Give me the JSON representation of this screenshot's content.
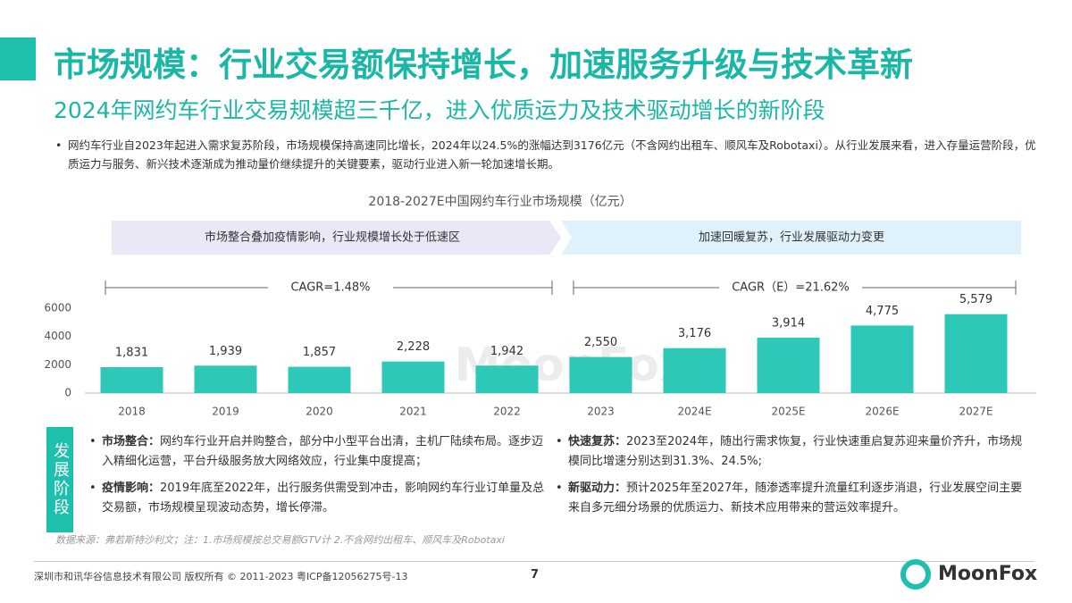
{
  "header": {
    "title": "市场规模：行业交易额保持增长，加速服务升级与技术革新",
    "subtitle": "2024年网约车行业交易规模超三千亿，进入优质运力及技术驱动增长的新阶段"
  },
  "summary": "网约车行业自2023年起进入需求复苏阶段，市场规模保持高速同比增长，2024年以24.5%的涨幅达到3176亿元（不含网约出租车、顺风车及Robotaxi）。从行业发展来看，进入存量运营阶段，优质运力与服务、新兴技术逐渐成为推动量价继续提升的关键要素，驱动行业进入新一轮加速增长期。",
  "chart_data": {
    "type": "bar",
    "title": "2018-2027E中国网约车行业市场规模（亿元）",
    "categories": [
      "2018",
      "2019",
      "2020",
      "2021",
      "2022",
      "2023",
      "2024E",
      "2025E",
      "2026E",
      "2027E"
    ],
    "values": [
      1831,
      1939,
      1857,
      2228,
      1942,
      2550,
      3176,
      3914,
      4775,
      5579
    ],
    "value_labels": [
      "1,831",
      "1,939",
      "1,857",
      "2,228",
      "1,942",
      "2,550",
      "3,176",
      "3,914",
      "4,775",
      "5,579"
    ],
    "color": "#2ec8b8",
    "ylim": [
      0,
      6000
    ],
    "yticks": [
      0,
      2000,
      4000,
      6000
    ],
    "grid": false,
    "phases": [
      "市场整合叠加疫情影响，行业规模增长处于低速区",
      "加速回暖复苏，行业发展驱动力变更"
    ],
    "cagr": [
      "CAGR=1.48%",
      "CAGR（E）=21.62%"
    ],
    "watermark": "MoonFox"
  },
  "stage": {
    "label": "发展阶段",
    "left": [
      {
        "label": "市场整合：",
        "text": "网约车行业开启并购整合，部分中小型平台出清，主机厂陆续布局。逐步迈入精细化运营，平台升级服务放大网络效应，行业集中度提高；"
      },
      {
        "label": "疫情影响：",
        "text": "2019年底至2022年，出行服务供需受到冲击，影响网约车行业订单量及总交易额，市场规模呈现波动态势，增长停滞。"
      }
    ],
    "right": [
      {
        "label": "快速复苏：",
        "text": "2023至2024年，随出行需求恢复，行业快速重启复苏迎来量价齐升，市场规模同比增速分别达到31.3%、24.5%;"
      },
      {
        "label": "新驱动力：",
        "text": "预计2025年至2027年，随渗透率提升流量红利逐步消退，行业发展空间主要来自多元细分场景的优质运力、新技术应用带来的营运效率提升。"
      }
    ]
  },
  "source": "数据来源：弗若斯特沙利文；注：1.市场规模按总交易额GTV计 2.不含网约出租车、顺风车及Robotaxi",
  "footer": {
    "copyright": "深圳市和讯华谷信息技术有限公司 版权所有 © 2011-2023 粤ICP备12056275号-13",
    "page": "7",
    "logo": "MoonFox"
  }
}
